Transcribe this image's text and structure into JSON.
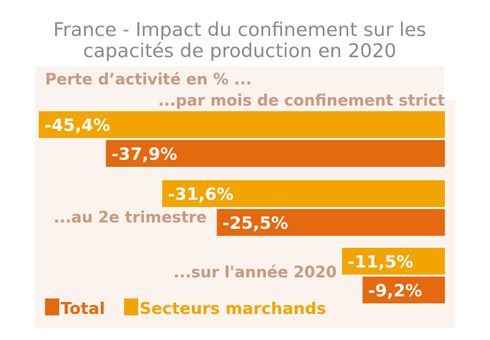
{
  "title_line1": "France - Impact du confinement sur les",
  "title_line2": "capacités de production en 2020",
  "colors": {
    "total": "#e5690e",
    "marchands": "#f2a500",
    "category_text": "#c89a80",
    "panel": "#fbf3ee",
    "title": "#8a8a8a"
  },
  "chart_data": {
    "type": "bar",
    "orientation": "horizontal",
    "heading": "Perte d’activité en % ...",
    "categories": [
      "...par mois de confinement strict",
      "...au 2e trimestre",
      "...sur l'année 2020"
    ],
    "series": [
      {
        "name": "Secteurs marchands",
        "values": [
          -45.4,
          -31.6,
          -11.5
        ],
        "labels": [
          "-45,4%",
          "-31,6%",
          "-11,5%"
        ]
      },
      {
        "name": "Total",
        "values": [
          -37.9,
          -25.5,
          -9.2
        ],
        "labels": [
          "-37,9%",
          "-25,5%",
          "-9,2%"
        ]
      }
    ],
    "legend": [
      "Total",
      "Secteurs marchands"
    ],
    "legend_position": "bottom-left",
    "xlim": [
      -45.4,
      0
    ],
    "grid": false
  }
}
